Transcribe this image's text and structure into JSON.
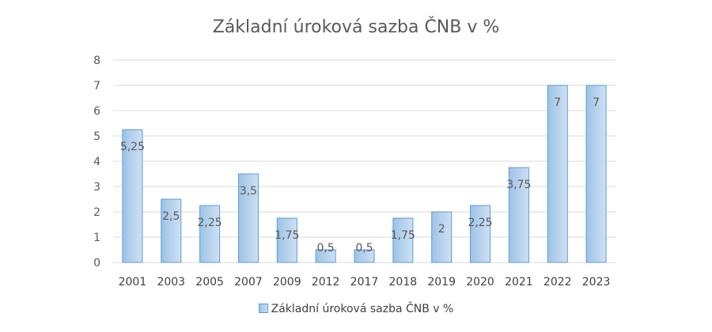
{
  "chart_data": {
    "type": "bar",
    "title": "Základní úroková sazba ČNB v %",
    "categories": [
      "2001",
      "2003",
      "2005",
      "2007",
      "2009",
      "2012",
      "2017",
      "2018",
      "2019",
      "2020",
      "2021",
      "2022",
      "2023"
    ],
    "series": [
      {
        "name": "Základní úroková sazba ČNB v %",
        "values": [
          5.25,
          2.5,
          2.25,
          3.5,
          1.75,
          0.5,
          0.5,
          1.75,
          2,
          2.25,
          3.75,
          7,
          7
        ],
        "labels": [
          "5,25",
          "2,5",
          "2,25",
          "3,5",
          "1,75",
          "0,5",
          "0,5",
          "1,75",
          "2",
          "2,25",
          "3,75",
          "7",
          "7"
        ]
      }
    ],
    "ylim": [
      0,
      8
    ],
    "yticks": [
      0,
      1,
      2,
      3,
      4,
      5,
      6,
      7,
      8
    ],
    "grid": true,
    "legend": "bottom",
    "colors": {
      "bar_fill_dark": "#9dc3e6",
      "bar_fill_light": "#cfe0f3",
      "bar_stroke": "#5b9bd5",
      "grid": "#d9d9d9",
      "text": "#595959"
    }
  }
}
